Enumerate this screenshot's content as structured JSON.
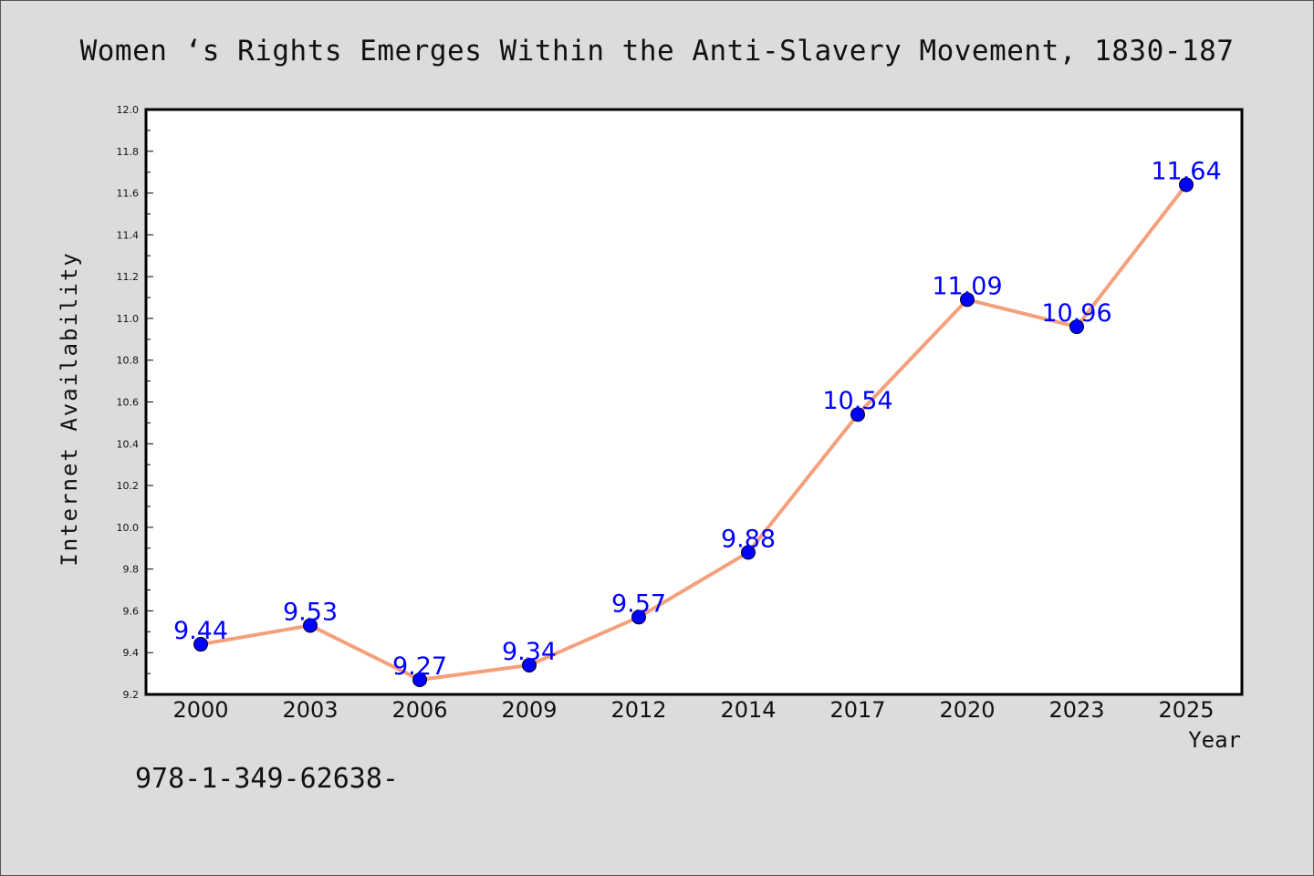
{
  "chart_data": {
    "type": "line",
    "title": "Women ‘s Rights Emerges Within the Anti-Slavery Movement, 1830-187",
    "xlabel": "Year",
    "ylabel": "Internet Availability",
    "categories": [
      "2000",
      "2003",
      "2006",
      "2009",
      "2012",
      "2014",
      "2017",
      "2020",
      "2023",
      "2025"
    ],
    "values": [
      9.44,
      9.53,
      9.27,
      9.34,
      9.57,
      9.88,
      10.54,
      11.09,
      10.96,
      11.64
    ],
    "data_labels": [
      "9.44",
      "9.53",
      "9.27",
      "9.34",
      "9.57",
      "9.88",
      "10.54",
      "11.09",
      "10.96",
      "11.64"
    ],
    "ylim": [
      9.2,
      12.0
    ],
    "yticks": [
      "9.2",
      "9.4",
      "9.6",
      "9.8",
      "10.0",
      "10.2",
      "10.4",
      "10.6",
      "10.8",
      "11.0",
      "11.2",
      "11.4",
      "11.6",
      "11.8",
      "12.0"
    ],
    "line_color": "#f4a07c",
    "marker_color": "#0000ff",
    "label_color": "#0000ff",
    "grid": false
  },
  "footnote": "978-1-349-62638-"
}
